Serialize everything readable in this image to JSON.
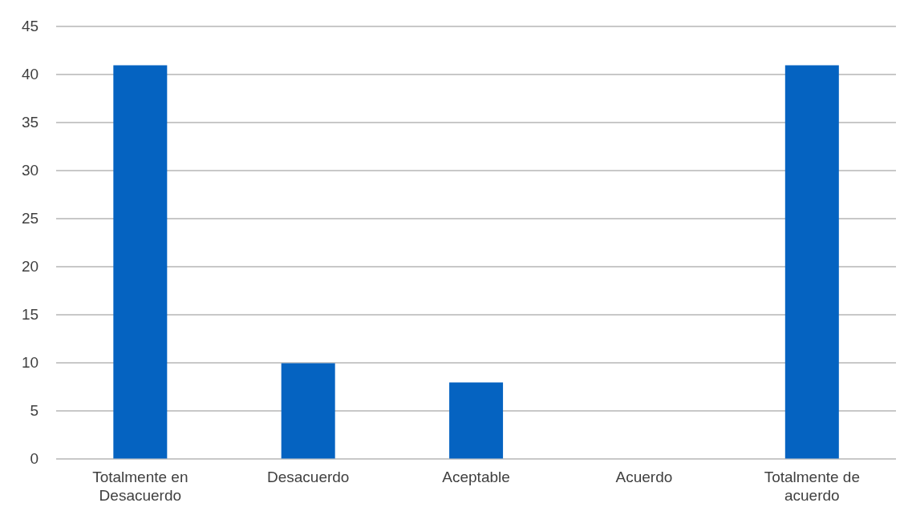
{
  "chart_data": {
    "type": "bar",
    "categories": [
      "Totalmente en Desacuerdo",
      "Desacuerdo",
      "Aceptable",
      "Acuerdo",
      "Totalmente de acuerdo"
    ],
    "values": [
      41,
      10,
      8,
      0,
      41
    ],
    "color": "#0563c1",
    "ylim": [
      0,
      45
    ],
    "yticks": [
      0,
      5,
      10,
      15,
      20,
      25,
      30,
      35,
      40,
      45
    ],
    "grid": "y"
  }
}
